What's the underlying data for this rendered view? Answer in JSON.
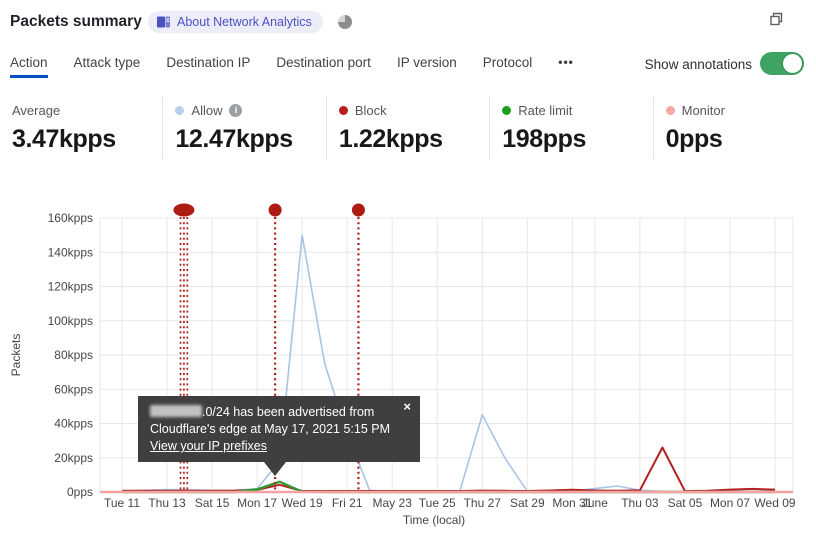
{
  "header": {
    "title": "Packets summary",
    "badge_label": "About Network Analytics",
    "icons": {
      "badge_icon": "book-icon",
      "corner_icon": "pie-chart-icon",
      "window_icon": "restore-window-icon"
    }
  },
  "tabs": {
    "items": [
      "Action",
      "Attack type",
      "Destination IP",
      "Destination port",
      "IP version",
      "Protocol"
    ],
    "active": "Action",
    "more_label": "•••",
    "active_color": "#0051c3"
  },
  "annotations_control": {
    "label": "Show annotations",
    "state": "on",
    "toggle_color": "#3fa463"
  },
  "stats": [
    {
      "label": "Average",
      "value": "3.47kpps",
      "dot_color": null,
      "has_info": false
    },
    {
      "label": "Allow",
      "value": "12.47kpps",
      "dot_color": "#b5d0ea",
      "has_info": true
    },
    {
      "label": "Block",
      "value": "1.22kpps",
      "dot_color": "#bb1d1d",
      "has_info": false
    },
    {
      "label": "Rate limit",
      "value": "198pps",
      "dot_color": "#1aa11a",
      "has_info": false
    },
    {
      "label": "Monitor",
      "value": "0pps",
      "dot_color": "#f7a6a6",
      "has_info": false
    }
  ],
  "chart_data": {
    "type": "line",
    "xlabel": "Time (local)",
    "ylabel": "Packets",
    "unit": "kpps",
    "ylim": [
      0,
      160
    ],
    "y_tick_labels": [
      "0pps",
      "20kpps",
      "40kpps",
      "60kpps",
      "80kpps",
      "100kpps",
      "120kpps",
      "140kpps",
      "160kpps"
    ],
    "x_range": [
      "May 11, 2021",
      "Jun 09, 2021"
    ],
    "x_ticks": [
      {
        "label": "Tue 11",
        "day": 0
      },
      {
        "label": "Thu 13",
        "day": 2
      },
      {
        "label": "Sat 15",
        "day": 4
      },
      {
        "label": "Mon 17",
        "day": 6
      },
      {
        "label": "Wed 19",
        "day": 8
      },
      {
        "label": "Fri 21",
        "day": 10
      },
      {
        "label": "May 23",
        "day": 12
      },
      {
        "label": "Tue 25",
        "day": 14
      },
      {
        "label": "Thu 27",
        "day": 16
      },
      {
        "label": "Sat 29",
        "day": 18
      },
      {
        "label": "Mon 31",
        "day": 20
      },
      {
        "label": "June",
        "day": 21
      },
      {
        "label": "Thu 03",
        "day": 23
      },
      {
        "label": "Sat 05",
        "day": 25
      },
      {
        "label": "Mon 07",
        "day": 27
      },
      {
        "label": "Wed 09",
        "day": 29
      }
    ],
    "grid": true,
    "series": [
      {
        "name": "Allow",
        "color": "#a9c4e6",
        "width": 1.6,
        "values": [
          0.5,
          1,
          1.4,
          1.2,
          1,
          1,
          2,
          18,
          150,
          75,
          34,
          1,
          0.4,
          0.4,
          0.4,
          0.5,
          45,
          20,
          0.4,
          0.4,
          0.4,
          2,
          3.5,
          1,
          0.4,
          0.4,
          0.4,
          0.4,
          0.4,
          0.4
        ]
      },
      {
        "name": "Block",
        "color": "#b32020",
        "width": 2,
        "values": [
          0.7,
          0.7,
          0.7,
          0.7,
          0.7,
          0.8,
          1.2,
          4.2,
          0.6,
          0.6,
          0.6,
          0.6,
          0.6,
          0.6,
          0.6,
          0.6,
          0.8,
          0.7,
          0.6,
          0.9,
          1.3,
          0.9,
          0.7,
          1,
          26,
          0.5,
          0.7,
          1.4,
          1.8,
          1.4
        ]
      },
      {
        "name": "Rate limit",
        "color": "#2e9b30",
        "width": 2.4,
        "values": [
          0,
          0,
          0,
          0,
          0,
          0,
          1.5,
          6,
          0.2,
          0,
          0,
          0,
          0,
          0,
          0,
          0,
          0,
          0,
          0,
          0,
          0,
          0,
          0,
          0,
          0,
          0,
          0,
          0,
          0,
          0
        ]
      },
      {
        "name": "Monitor",
        "color": "#f5a2a2",
        "width": 2.4,
        "full_width_baseline": true,
        "values": [
          0,
          0,
          0,
          0,
          0,
          0,
          0,
          0,
          0,
          0,
          0,
          0,
          0,
          0,
          0,
          0,
          0,
          0,
          0,
          0,
          0,
          0,
          0,
          0,
          0,
          0,
          0,
          0,
          0,
          0
        ]
      }
    ],
    "annotations": [
      {
        "marker": "pill",
        "line_days": [
          2.6,
          2.75,
          2.9
        ],
        "color": "#ad1b12"
      },
      {
        "marker": "dot",
        "line_days": [
          6.8
        ],
        "color": "#ad1b12"
      },
      {
        "marker": "dot",
        "line_days": [
          10.5
        ],
        "color": "#ad1b12"
      }
    ]
  },
  "tooltip": {
    "redacted_ip": "[redacted]",
    "line1_suffix": ".0/24 has been advertised from",
    "line2": "Cloudflare's edge at May 17, 2021 5:15 PM",
    "link_label": "View your IP prefixes",
    "close_label": "×"
  }
}
